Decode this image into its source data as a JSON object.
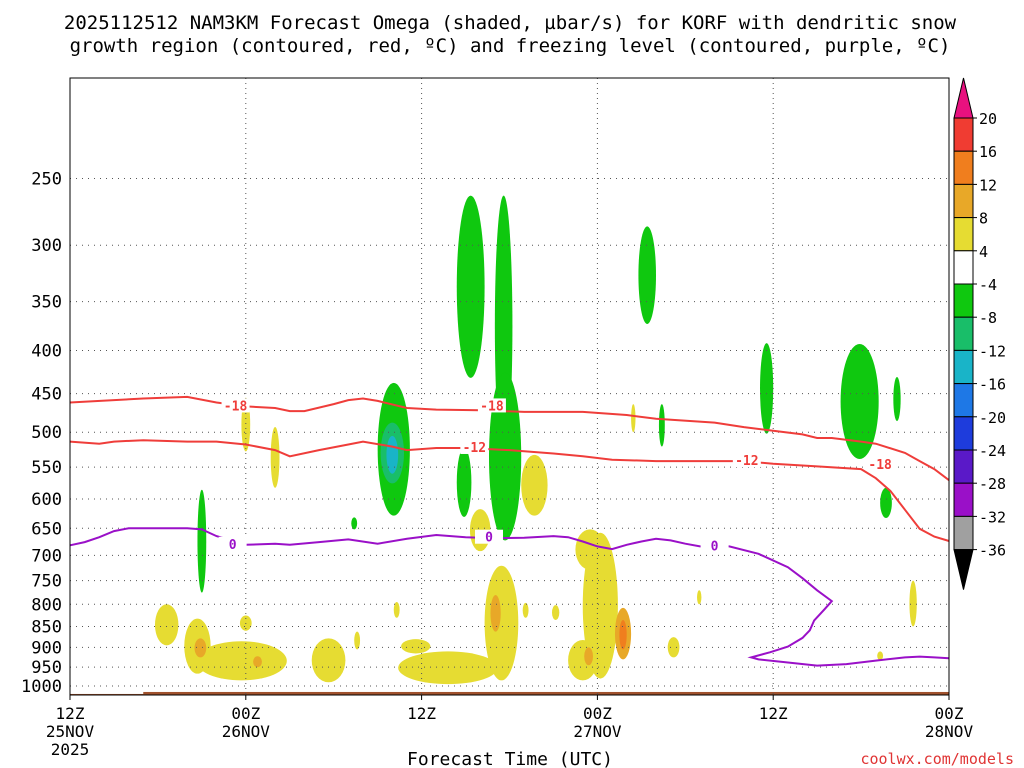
{
  "title_line1": "2025112512 NAM3KM Forecast Omega (shaded, µbar/s) for KORF with dendritic snow",
  "title_line2": "growth region (contoured, red, ºC) and freezing level (contoured, purple, ºC)",
  "xlabel": "Forecast Time (UTC)",
  "credit": "coolwx.com/models",
  "colors": {
    "isotherm": "#ef3d3a",
    "freezing_level": "#9a10c8",
    "ground": "#a0522d",
    "gridline": "#555555"
  },
  "chart_data": {
    "type": "heatmap",
    "x_unit": "forecast hours from 2025-11-25 12Z",
    "xlim": [
      0,
      60
    ],
    "y_unit": "hPa",
    "y_scale": "log-pressure",
    "ylim": [
      1025,
      190
    ],
    "grid": true,
    "x_ticks": [
      {
        "x": 0,
        "hour": "12Z",
        "date": "25NOV",
        "year": "2025"
      },
      {
        "x": 12,
        "hour": "00Z",
        "date": "26NOV",
        "year": ""
      },
      {
        "x": 24,
        "hour": "12Z",
        "date": "",
        "year": ""
      },
      {
        "x": 36,
        "hour": "00Z",
        "date": "27NOV",
        "year": ""
      },
      {
        "x": 48,
        "hour": "12Z",
        "date": "",
        "year": ""
      },
      {
        "x": 60,
        "hour": "00Z",
        "date": "28NOV",
        "year": ""
      }
    ],
    "y_ticks": [
      250,
      300,
      350,
      400,
      450,
      500,
      550,
      600,
      650,
      700,
      750,
      800,
      850,
      900,
      950,
      1000
    ],
    "colorbar": {
      "unit": "µbar/s",
      "levels": [
        {
          "label": "20",
          "color": "#e8117f"
        },
        {
          "label": "16",
          "color": "#f03c32"
        },
        {
          "label": "12",
          "color": "#f07e1e"
        },
        {
          "label": "8",
          "color": "#e8a828"
        },
        {
          "label": "4",
          "color": "#e6dc32"
        },
        {
          "label": "-4",
          "color": "#ffffff"
        },
        {
          "label": "-8",
          "color": "#0fc80f"
        },
        {
          "label": "-12",
          "color": "#19be69"
        },
        {
          "label": "-16",
          "color": "#19b4c8"
        },
        {
          "label": "-20",
          "color": "#1e78e6"
        },
        {
          "label": "-24",
          "color": "#1e3cdc"
        },
        {
          "label": "-28",
          "color": "#5a19c8"
        },
        {
          "label": "-32",
          "color": "#9a10c8"
        },
        {
          "label": "-36",
          "color": "#a0a0a0"
        }
      ]
    },
    "contours": [
      {
        "series": "dendritic",
        "value": "-18",
        "color": "#ef3d3a",
        "labels": [
          {
            "x": 11.3,
            "y": 466
          },
          {
            "x": 28.8,
            "y": 466
          },
          {
            "x": 55.3,
            "y": 547
          }
        ],
        "points": [
          [
            0,
            461
          ],
          [
            3,
            458
          ],
          [
            5,
            456
          ],
          [
            8,
            454
          ],
          [
            10,
            461
          ],
          [
            12,
            466
          ],
          [
            14,
            468
          ],
          [
            15,
            472
          ],
          [
            16,
            472
          ],
          [
            18,
            463
          ],
          [
            19,
            458
          ],
          [
            20,
            456
          ],
          [
            21,
            459
          ],
          [
            23,
            468
          ],
          [
            25,
            470
          ],
          [
            28,
            471
          ],
          [
            31,
            473
          ],
          [
            35,
            473
          ],
          [
            38,
            477
          ],
          [
            40,
            482
          ],
          [
            44,
            487
          ],
          [
            46,
            493
          ],
          [
            48,
            498
          ],
          [
            50,
            503
          ],
          [
            51,
            508
          ],
          [
            52,
            508
          ],
          [
            54,
            513
          ],
          [
            55,
            516
          ],
          [
            57,
            529
          ],
          [
            58,
            541
          ],
          [
            59,
            553
          ],
          [
            60,
            570
          ]
        ]
      },
      {
        "series": "dendritic",
        "value": "-12",
        "color": "#ef3d3a",
        "labels": [
          {
            "x": 27.6,
            "y": 522
          },
          {
            "x": 46.2,
            "y": 541
          }
        ],
        "points": [
          [
            0,
            513
          ],
          [
            2,
            516
          ],
          [
            3,
            513
          ],
          [
            5,
            511
          ],
          [
            8,
            513
          ],
          [
            10,
            513
          ],
          [
            12,
            517
          ],
          [
            14,
            525
          ],
          [
            15,
            534
          ],
          [
            17,
            525
          ],
          [
            19,
            517
          ],
          [
            20,
            513
          ],
          [
            22,
            520
          ],
          [
            23,
            525
          ],
          [
            25,
            522
          ],
          [
            27,
            522
          ],
          [
            30,
            525
          ],
          [
            33,
            530
          ],
          [
            35,
            534
          ],
          [
            37,
            539
          ],
          [
            40,
            541
          ],
          [
            44,
            541
          ],
          [
            46,
            541
          ],
          [
            48,
            545
          ],
          [
            51,
            549
          ],
          [
            54,
            553
          ],
          [
            55,
            567
          ],
          [
            56,
            587
          ],
          [
            57,
            618
          ],
          [
            58,
            651
          ],
          [
            59,
            665
          ],
          [
            60,
            673
          ]
        ]
      },
      {
        "series": "freezing",
        "value": "0",
        "color": "#9a10c8",
        "labels": [
          {
            "x": 11.1,
            "y": 680
          },
          {
            "x": 28.6,
            "y": 667
          },
          {
            "x": 44.0,
            "y": 683
          }
        ],
        "points": [
          [
            0,
            681
          ],
          [
            1,
            675
          ],
          [
            2,
            666
          ],
          [
            3,
            655
          ],
          [
            4,
            650
          ],
          [
            6,
            650
          ],
          [
            8,
            650
          ],
          [
            9,
            652
          ],
          [
            10,
            664
          ],
          [
            12,
            680
          ],
          [
            14,
            678
          ],
          [
            15,
            680
          ],
          [
            17,
            675
          ],
          [
            19,
            670
          ],
          [
            21,
            678
          ],
          [
            23,
            669
          ],
          [
            25,
            662
          ],
          [
            27,
            666
          ],
          [
            29,
            668
          ],
          [
            31,
            667
          ],
          [
            33,
            664
          ],
          [
            34,
            666
          ],
          [
            35,
            674
          ],
          [
            36,
            683
          ],
          [
            37,
            688
          ],
          [
            38,
            680
          ],
          [
            39,
            674
          ],
          [
            40,
            669
          ],
          [
            41,
            672
          ],
          [
            42,
            678
          ],
          [
            43,
            683
          ],
          [
            45,
            683
          ],
          [
            47,
            697
          ],
          [
            49,
            723
          ],
          [
            50,
            745
          ],
          [
            51,
            770
          ],
          [
            52,
            793
          ],
          [
            51.5,
            811
          ],
          [
            50.8,
            836
          ],
          [
            50.5,
            859
          ],
          [
            50,
            877
          ],
          [
            49,
            898
          ],
          [
            47.8,
            912
          ],
          [
            46.5,
            925
          ],
          [
            47,
            930
          ],
          [
            49,
            938
          ],
          [
            51,
            946
          ],
          [
            53,
            942
          ],
          [
            55,
            933
          ],
          [
            57,
            925
          ],
          [
            58,
            923
          ],
          [
            59,
            925
          ],
          [
            60,
            927
          ]
        ]
      }
    ],
    "omega_regions": [
      {
        "v": -8,
        "t": [
          8.7,
          9.3
        ],
        "p": [
          585,
          775
        ]
      },
      {
        "v": -8,
        "t": [
          26.4,
          28.3
        ],
        "p": [
          262,
          431
        ]
      },
      {
        "v": -8,
        "t": [
          29.0,
          30.2
        ],
        "p": [
          262,
          535
        ]
      },
      {
        "v": -8,
        "t": [
          28.6,
          30.8
        ],
        "p": [
          425,
          672
        ]
      },
      {
        "v": -8,
        "t": [
          26.4,
          27.4
        ],
        "p": [
          522,
          630
        ]
      },
      {
        "v": -8,
        "t": [
          21.0,
          23.2
        ],
        "p": [
          437,
          628
        ]
      },
      {
        "v": -12,
        "t": [
          21.2,
          22.8
        ],
        "p": [
          487,
          575
        ]
      },
      {
        "v": -16,
        "t": [
          21.6,
          22.4
        ],
        "p": [
          505,
          560
        ]
      },
      {
        "v": -8,
        "t": [
          38.8,
          40.0
        ],
        "p": [
          285,
          372
        ]
      },
      {
        "v": -8,
        "t": [
          40.2,
          40.6
        ],
        "p": [
          463,
          520
        ]
      },
      {
        "v": -8,
        "t": [
          47.1,
          48.0
        ],
        "p": [
          392,
          502
        ]
      },
      {
        "v": -8,
        "t": [
          52.6,
          55.2
        ],
        "p": [
          393,
          538
        ]
      },
      {
        "v": -8,
        "t": [
          56.2,
          56.7
        ],
        "p": [
          430,
          485
        ]
      },
      {
        "v": -8,
        "t": [
          55.3,
          56.1
        ],
        "p": [
          582,
          632
        ]
      },
      {
        "v": -8,
        "t": [
          19.2,
          19.6
        ],
        "p": [
          631,
          652
        ]
      },
      {
        "v": 4,
        "t": [
          11.7,
          12.3
        ],
        "p": [
          455,
          527
        ]
      },
      {
        "v": 4,
        "t": [
          13.7,
          14.3
        ],
        "p": [
          493,
          582
        ]
      },
      {
        "v": 4,
        "t": [
          30.8,
          32.6
        ],
        "p": [
          532,
          628
        ]
      },
      {
        "v": 4,
        "t": [
          27.3,
          28.7
        ],
        "p": [
          617,
          692
        ]
      },
      {
        "v": 4,
        "t": [
          5.8,
          7.4
        ],
        "p": [
          800,
          895
        ]
      },
      {
        "v": 4,
        "t": [
          7.8,
          9.6
        ],
        "p": [
          832,
          967
        ]
      },
      {
        "v": 4,
        "t": [
          8.6,
          14.8
        ],
        "p": [
          885,
          985
        ]
      },
      {
        "v": 4,
        "t": [
          11.6,
          12.4
        ],
        "p": [
          825,
          860
        ]
      },
      {
        "v": 4,
        "t": [
          16.5,
          18.8
        ],
        "p": [
          878,
          990
        ]
      },
      {
        "v": 4,
        "t": [
          19.4,
          19.8
        ],
        "p": [
          862,
          905
        ]
      },
      {
        "v": 4,
        "t": [
          22.1,
          22.5
        ],
        "p": [
          795,
          830
        ]
      },
      {
        "v": 4,
        "t": [
          22.6,
          24.6
        ],
        "p": [
          880,
          915
        ]
      },
      {
        "v": 4,
        "t": [
          22.4,
          29.2
        ],
        "p": [
          910,
          995
        ]
      },
      {
        "v": 4,
        "t": [
          28.3,
          30.6
        ],
        "p": [
          720,
          985
        ]
      },
      {
        "v": 4,
        "t": [
          30.9,
          31.3
        ],
        "p": [
          797,
          830
        ]
      },
      {
        "v": 4,
        "t": [
          32.9,
          33.4
        ],
        "p": [
          802,
          835
        ]
      },
      {
        "v": 4,
        "t": [
          34.0,
          36.0
        ],
        "p": [
          882,
          985
        ]
      },
      {
        "v": 4,
        "t": [
          35.0,
          37.4
        ],
        "p": [
          658,
          980
        ]
      },
      {
        "v": 4,
        "t": [
          34.5,
          36.5
        ],
        "p": [
          652,
          728
        ]
      },
      {
        "v": 4,
        "t": [
          38.3,
          38.6
        ],
        "p": [
          463,
          500
        ]
      },
      {
        "v": 4,
        "t": [
          40.8,
          41.6
        ],
        "p": [
          875,
          925
        ]
      },
      {
        "v": 4,
        "t": [
          42.8,
          43.1
        ],
        "p": [
          770,
          800
        ]
      },
      {
        "v": 4,
        "t": [
          57.3,
          57.8
        ],
        "p": [
          750,
          850
        ]
      },
      {
        "v": 4,
        "t": [
          55.1,
          55.5
        ],
        "p": [
          910,
          932
        ]
      },
      {
        "v": 8,
        "t": [
          8.5,
          9.3
        ],
        "p": [
          878,
          925
        ]
      },
      {
        "v": 8,
        "t": [
          12.5,
          13.1
        ],
        "p": [
          922,
          950
        ]
      },
      {
        "v": 8,
        "t": [
          28.7,
          29.4
        ],
        "p": [
          780,
          862
        ]
      },
      {
        "v": 8,
        "t": [
          35.1,
          35.7
        ],
        "p": [
          900,
          945
        ]
      },
      {
        "v": 8,
        "t": [
          37.2,
          38.3
        ],
        "p": [
          808,
          930
        ]
      },
      {
        "v": 12,
        "t": [
          37.5,
          38.0
        ],
        "p": [
          835,
          905
        ]
      }
    ]
  }
}
